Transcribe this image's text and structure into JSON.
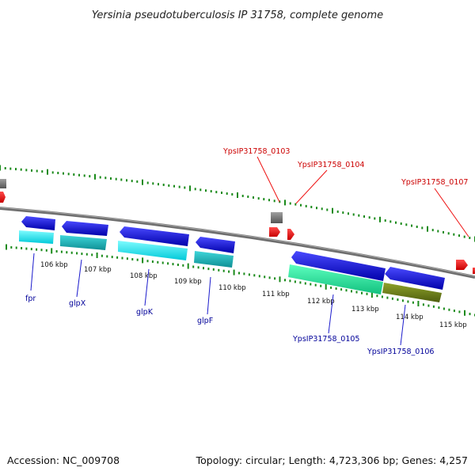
{
  "title": "Yersinia pseudotuberculosis IP 31758, complete genome",
  "footer": {
    "accession": "Accession: NC_009708",
    "summary": "Topology: circular; Length: 4,723,306 bp; Genes: 4,257"
  },
  "colors": {
    "backbone": "#808080",
    "tick": "#1a8a1a",
    "label_top": "#cc0000",
    "label_bottom": "#000099",
    "gene_blue": "#1a1acc",
    "gene_cyan": "#00e5f0",
    "gene_teal": "#18b3b8",
    "gene_green": "#2fe8a0",
    "gene_olive": "#6b7f18",
    "gene_red": "#ee1111",
    "gene_gray": "#777777"
  },
  "kbp_labels": [
    "106 kbp",
    "107 kbp",
    "108 kbp",
    "109 kbp",
    "110 kbp",
    "111 kbp",
    "112 kbp",
    "113 kbp",
    "114 kbp",
    "115 kbp"
  ],
  "gene_labels_top": [
    "YpsIP31758_0103",
    "YpsIP31758_0104",
    "YpsIP31758_0107"
  ],
  "gene_labels_bottom": [
    "fpr",
    "glpX",
    "glpK",
    "glpF",
    "YpsIP31758_0105",
    "YpsIP31758_0106"
  ]
}
